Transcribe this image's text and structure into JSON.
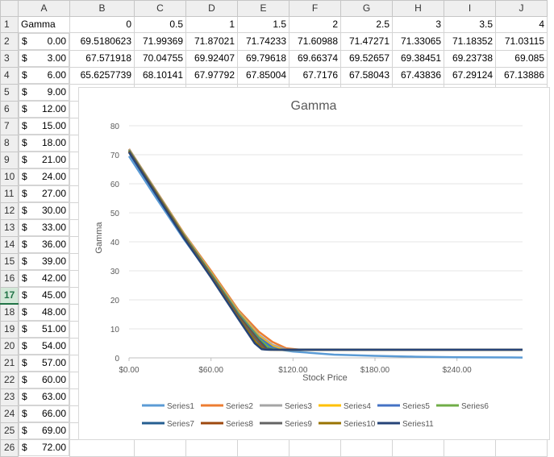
{
  "spreadsheet": {
    "columns": [
      "",
      "A",
      "B",
      "C",
      "D",
      "E",
      "F",
      "G",
      "H",
      "I",
      "J"
    ],
    "selected_row": 17,
    "rows": [
      {
        "n": "1",
        "a_sym": "",
        "a_val": "Gamma",
        "b": "0",
        "c": "0.5",
        "d": "1",
        "e": "1.5",
        "f": "2",
        "g": "2.5",
        "h": "3",
        "i": "3.5",
        "j": "4"
      },
      {
        "n": "2",
        "a_sym": "$",
        "a_val": "0.00",
        "b": "69.5180623",
        "c": "71.99369",
        "d": "71.87021",
        "e": "71.74233",
        "f": "71.60988",
        "g": "71.47271",
        "h": "71.33065",
        "i": "71.18352",
        "j": "71.03115"
      },
      {
        "n": "3",
        "a_sym": "$",
        "a_val": "3.00",
        "b": "67.571918",
        "c": "70.04755",
        "d": "69.92407",
        "e": "69.79618",
        "f": "69.66374",
        "g": "69.52657",
        "h": "69.38451",
        "i": "69.23738",
        "j": "69.085"
      },
      {
        "n": "4",
        "a_sym": "$",
        "a_val": "6.00",
        "b": "65.6257739",
        "c": "68.10141",
        "d": "67.97792",
        "e": "67.85004",
        "f": "67.7176",
        "g": "67.58043",
        "h": "67.43836",
        "i": "67.29124",
        "j": "67.13886"
      },
      {
        "n": "5",
        "a_sym": "$",
        "a_val": "9.00"
      },
      {
        "n": "6",
        "a_sym": "$",
        "a_val": "12.00"
      },
      {
        "n": "7",
        "a_sym": "$",
        "a_val": "15.00"
      },
      {
        "n": "8",
        "a_sym": "$",
        "a_val": "18.00"
      },
      {
        "n": "9",
        "a_sym": "$",
        "a_val": "21.00"
      },
      {
        "n": "10",
        "a_sym": "$",
        "a_val": "24.00"
      },
      {
        "n": "11",
        "a_sym": "$",
        "a_val": "27.00"
      },
      {
        "n": "12",
        "a_sym": "$",
        "a_val": "30.00"
      },
      {
        "n": "13",
        "a_sym": "$",
        "a_val": "33.00"
      },
      {
        "n": "14",
        "a_sym": "$",
        "a_val": "36.00"
      },
      {
        "n": "15",
        "a_sym": "$",
        "a_val": "39.00"
      },
      {
        "n": "16",
        "a_sym": "$",
        "a_val": "42.00"
      },
      {
        "n": "17",
        "a_sym": "$",
        "a_val": "45.00"
      },
      {
        "n": "18",
        "a_sym": "$",
        "a_val": "48.00"
      },
      {
        "n": "19",
        "a_sym": "$",
        "a_val": "51.00"
      },
      {
        "n": "20",
        "a_sym": "$",
        "a_val": "54.00"
      },
      {
        "n": "21",
        "a_sym": "$",
        "a_val": "57.00"
      },
      {
        "n": "22",
        "a_sym": "$",
        "a_val": "60.00"
      },
      {
        "n": "23",
        "a_sym": "$",
        "a_val": "63.00"
      },
      {
        "n": "24",
        "a_sym": "$",
        "a_val": "66.00"
      },
      {
        "n": "25",
        "a_sym": "$",
        "a_val": "69.00"
      },
      {
        "n": "26",
        "a_sym": "$",
        "a_val": "72.00"
      }
    ]
  },
  "chart_data": {
    "type": "line",
    "title": "Gamma",
    "xlabel": "Stock Price",
    "ylabel": "Gamma",
    "xlim": [
      0,
      288
    ],
    "ylim": [
      0,
      80
    ],
    "yticks": [
      0,
      10,
      20,
      30,
      40,
      50,
      60,
      70,
      80
    ],
    "xticks": [
      0,
      60,
      120,
      180,
      240
    ],
    "xtick_labels": [
      "$0.00",
      "$60.00",
      "$120.00",
      "$180.00",
      "$240.00"
    ],
    "legend_position": "bottom",
    "series": [
      {
        "name": "Series1",
        "color": "#5b9bd5",
        "points": [
          [
            0,
            69.5
          ],
          [
            20,
            55
          ],
          [
            40,
            41
          ],
          [
            60,
            28
          ],
          [
            80,
            14.5
          ],
          [
            95,
            6
          ],
          [
            105,
            3.2
          ],
          [
            120,
            2.2
          ],
          [
            150,
            1.1
          ],
          [
            180,
            0.7
          ],
          [
            210,
            0.4
          ],
          [
            240,
            0.2
          ],
          [
            288,
            0.1
          ]
        ]
      },
      {
        "name": "Series2",
        "color": "#ed7d31",
        "points": [
          [
            0,
            72
          ],
          [
            20,
            57.5
          ],
          [
            40,
            43
          ],
          [
            60,
            30
          ],
          [
            80,
            16.5
          ],
          [
            95,
            9
          ],
          [
            105,
            5.5
          ],
          [
            115,
            3.3
          ],
          [
            125,
            2.8
          ],
          [
            288,
            2.8
          ]
        ]
      },
      {
        "name": "Series3",
        "color": "#a5a5a5",
        "points": [
          [
            0,
            71.9
          ],
          [
            20,
            57.3
          ],
          [
            40,
            42.8
          ],
          [
            60,
            29.5
          ],
          [
            80,
            16
          ],
          [
            95,
            8
          ],
          [
            105,
            4.5
          ],
          [
            115,
            2.9
          ],
          [
            288,
            2.8
          ]
        ]
      },
      {
        "name": "Series4",
        "color": "#ffc000",
        "points": [
          [
            0,
            71.7
          ],
          [
            20,
            57.1
          ],
          [
            40,
            42.6
          ],
          [
            60,
            29.3
          ],
          [
            80,
            15.7
          ],
          [
            95,
            7.5
          ],
          [
            105,
            4
          ],
          [
            112,
            2.8
          ],
          [
            288,
            2.8
          ]
        ]
      },
      {
        "name": "Series5",
        "color": "#4472c4",
        "points": [
          [
            0,
            71.6
          ],
          [
            20,
            57
          ],
          [
            40,
            42.4
          ],
          [
            60,
            29
          ],
          [
            80,
            15.3
          ],
          [
            95,
            7
          ],
          [
            105,
            3.6
          ],
          [
            110,
            2.8
          ],
          [
            288,
            2.8
          ]
        ]
      },
      {
        "name": "Series6",
        "color": "#70ad47",
        "points": [
          [
            0,
            71.5
          ],
          [
            20,
            56.9
          ],
          [
            40,
            42.3
          ],
          [
            60,
            28.8
          ],
          [
            80,
            15
          ],
          [
            95,
            6.6
          ],
          [
            103,
            3.3
          ],
          [
            108,
            2.8
          ],
          [
            288,
            2.8
          ]
        ]
      },
      {
        "name": "Series7",
        "color": "#255e91",
        "points": [
          [
            0,
            71.3
          ],
          [
            20,
            56.7
          ],
          [
            40,
            42.1
          ],
          [
            60,
            28.5
          ],
          [
            80,
            14.6
          ],
          [
            95,
            6.1
          ],
          [
            101,
            3.2
          ],
          [
            106,
            2.8
          ],
          [
            288,
            2.8
          ]
        ]
      },
      {
        "name": "Series8",
        "color": "#9e480e",
        "points": [
          [
            0,
            71.2
          ],
          [
            20,
            56.6
          ],
          [
            40,
            42
          ],
          [
            60,
            28.3
          ],
          [
            80,
            14.3
          ],
          [
            95,
            5.6
          ],
          [
            100,
            3
          ],
          [
            104,
            2.8
          ],
          [
            288,
            2.8
          ]
        ]
      },
      {
        "name": "Series9",
        "color": "#636363",
        "points": [
          [
            0,
            71.0
          ],
          [
            20,
            56.4
          ],
          [
            40,
            41.8
          ],
          [
            60,
            28.1
          ],
          [
            80,
            14
          ],
          [
            95,
            5.2
          ],
          [
            99,
            3
          ],
          [
            103,
            2.8
          ],
          [
            288,
            2.8
          ]
        ]
      },
      {
        "name": "Series10",
        "color": "#997300",
        "points": [
          [
            0,
            70.9
          ],
          [
            20,
            56.3
          ],
          [
            40,
            41.6
          ],
          [
            60,
            27.9
          ],
          [
            80,
            13.7
          ],
          [
            93,
            5.2
          ],
          [
            98,
            3
          ],
          [
            102,
            2.8
          ],
          [
            288,
            2.8
          ]
        ]
      },
      {
        "name": "Series11",
        "color": "#264478",
        "points": [
          [
            0,
            70.8
          ],
          [
            20,
            56.1
          ],
          [
            40,
            41.4
          ],
          [
            60,
            27.7
          ],
          [
            80,
            13.4
          ],
          [
            92,
            5
          ],
          [
            97,
            3
          ],
          [
            101,
            2.8
          ],
          [
            288,
            2.8
          ]
        ]
      }
    ]
  }
}
